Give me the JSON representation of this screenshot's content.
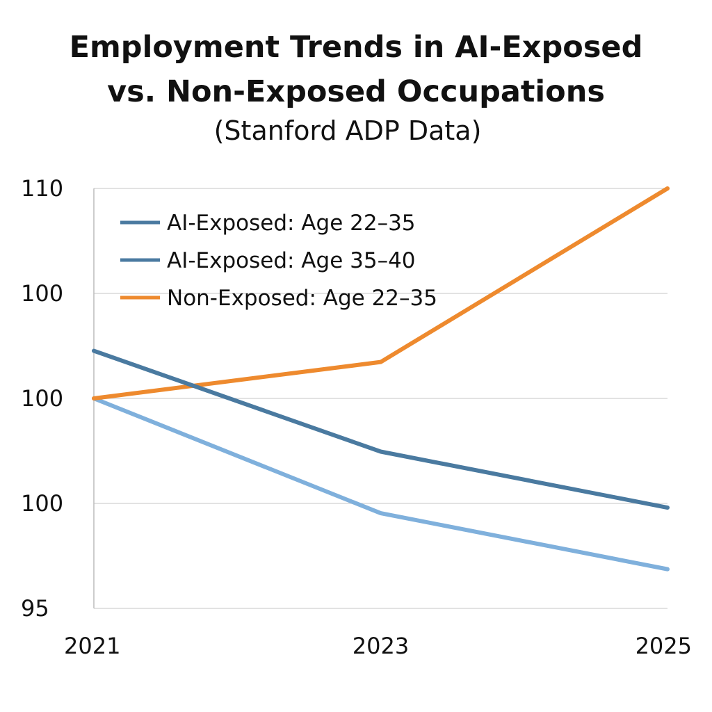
{
  "chart_data": {
    "type": "line",
    "title": "Employment Trends in AI-Exposed\nvs. Non-Exposed Occupations",
    "title_lines": [
      "Employment Trends in AI-Exposed",
      "vs. Non-Exposed Occupations"
    ],
    "subtitle": "(Stanford ADP Data)",
    "xlabel": "",
    "ylabel": "",
    "x": [
      "2021",
      "2023",
      "2025"
    ],
    "x_tick_labels": [
      "2021",
      "2023",
      "2025"
    ],
    "ylim": [
      95,
      110
    ],
    "y_tick_labels": [
      "110",
      "100",
      "100",
      "100",
      "95"
    ],
    "grid": true,
    "legend_placement": "top-left",
    "series": [
      {
        "name": "AI-Exposed: Age 22–35",
        "color": "#4a7aa0",
        "legend_color": "#4a7aa0",
        "values": [
          104.2,
          100.6,
          98.6
        ]
      },
      {
        "name": "AI-Exposed: Age 35–40",
        "color": "#7fb0dc",
        "legend_color": "#4a7aa0",
        "values": [
          102.5,
          98.4,
          96.4
        ]
      },
      {
        "name": "Non-Exposed: Age 22–35",
        "color": "#ee8a2e",
        "legend_color": "#ee8a2e",
        "values": [
          102.5,
          103.8,
          110.0
        ]
      }
    ]
  }
}
